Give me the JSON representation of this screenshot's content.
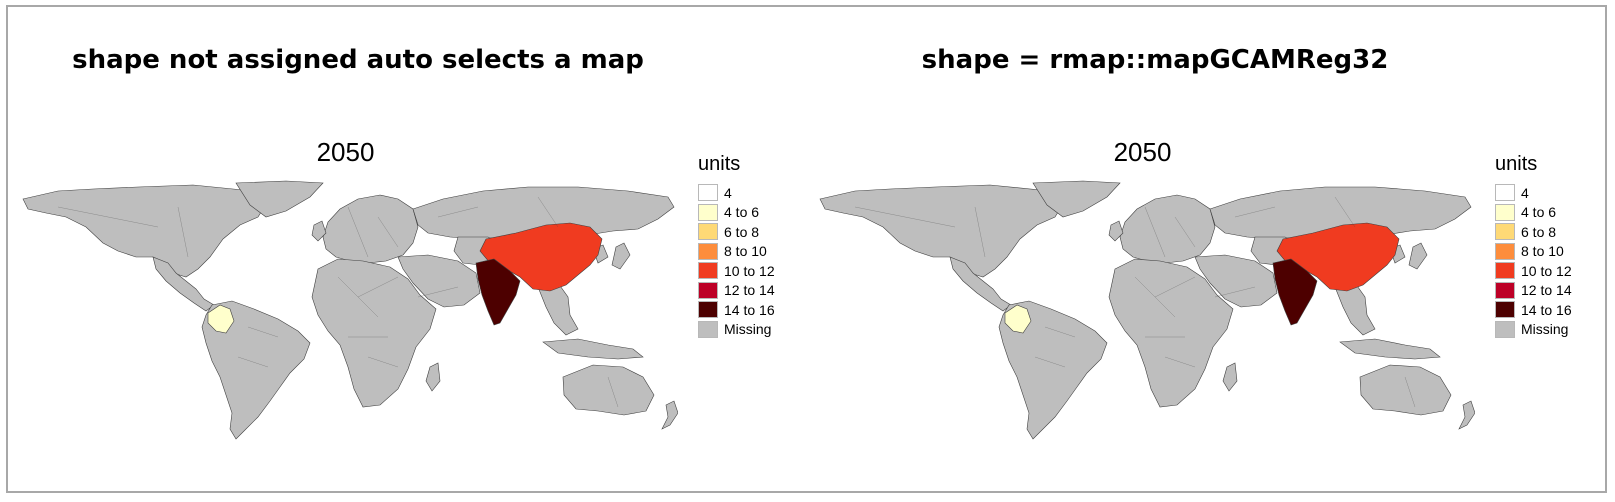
{
  "panels": [
    {
      "heading": "shape not assigned auto selects a map",
      "year": "2050",
      "legend_title": "units"
    },
    {
      "heading": "shape = rmap::mapGCAMReg32",
      "year": "2050",
      "legend_title": "units"
    }
  ],
  "legend": [
    {
      "label": "4",
      "color": "#ffffff"
    },
    {
      "label": "4 to 6",
      "color": "#ffffcc"
    },
    {
      "label": "6 to 8",
      "color": "#fed976"
    },
    {
      "label": "8 to 10",
      "color": "#fd8d3c"
    },
    {
      "label": "10 to 12",
      "color": "#f03b20"
    },
    {
      "label": "12 to 14",
      "color": "#bd0026"
    },
    {
      "label": "14 to 16",
      "color": "#4d0000"
    },
    {
      "label": "Missing",
      "color": "#bebebe"
    }
  ],
  "map_data": {
    "highlighted_regions": [
      {
        "region": "China",
        "legend_class": "10 to 12",
        "color": "#f03b20"
      },
      {
        "region": "India",
        "legend_class": "14 to 16",
        "color": "#4d0000"
      },
      {
        "region": "Colombia",
        "legend_class": "4 to 6",
        "color": "#ffffcc"
      }
    ],
    "missing_color": "#bebebe",
    "border_color": "#404040"
  }
}
